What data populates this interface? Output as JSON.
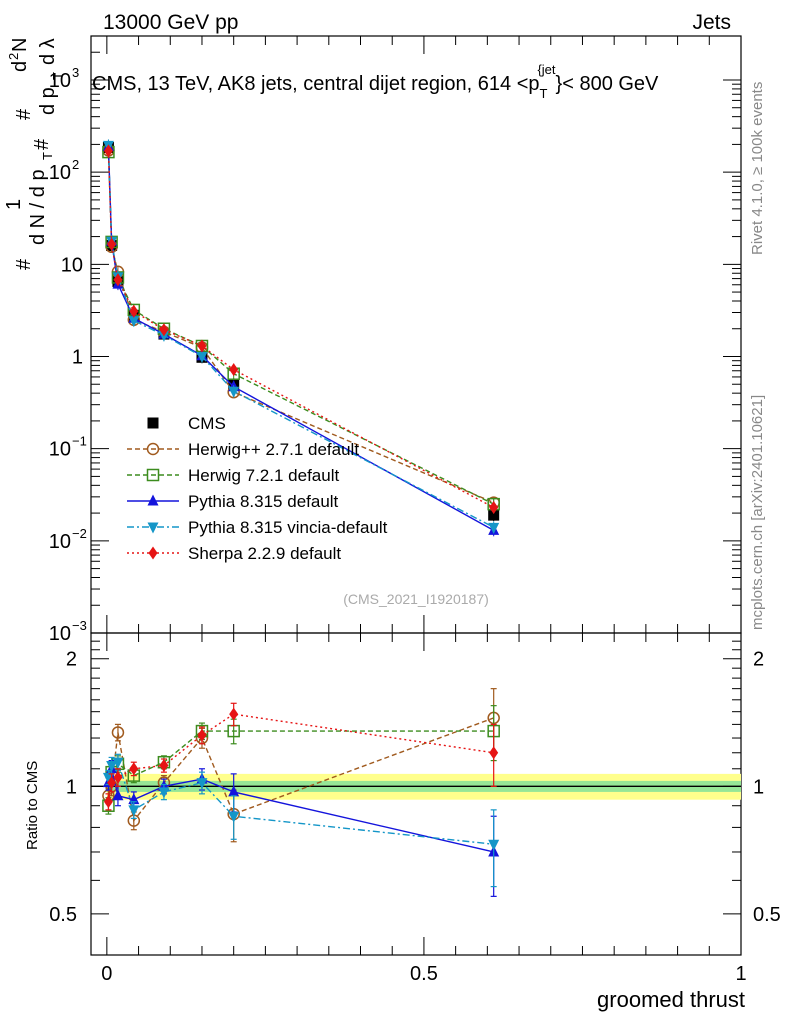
{
  "header": {
    "left": "13000 GeV pp",
    "right": "Jets",
    "title": "CMS, 13 TeV, AK8 jets, central dijet region, 614 <p",
    "title_sub": "T",
    "title_sup": "{jet",
    "title_end": "}< 800 GeV"
  },
  "side": {
    "rivet": "Rivet 4.1.0, ≥ 100k events",
    "mcplots": "mcplots.cern.ch [arXiv:2401.10621]"
  },
  "watermark": "(CMS_2021_I1920187)",
  "ylabel": {
    "hash": "#",
    "one": "1",
    "dN": "d N / d p",
    "T": "T",
    "d2N": "d",
    "sq": "2",
    "N": "N",
    "dpt": "d p",
    "dlam": "d λ"
  },
  "ratio_label": "Ratio to CMS",
  "xlabel": "groomed thrust",
  "chart_data": [
    {
      "type": "scatter",
      "panel": "main",
      "yscale": "log",
      "xlim": [
        -0.025,
        1.0
      ],
      "ylim": [
        0.001,
        3000
      ],
      "x": [
        0.0025,
        0.0075,
        0.0175,
        0.0425,
        0.09,
        0.15,
        0.2,
        0.61
      ],
      "yticks": [
        {
          "value": 0.001,
          "label": "10",
          "exp": "−3"
        },
        {
          "value": 0.01,
          "label": "10",
          "exp": "−2"
        },
        {
          "value": 0.1,
          "label": "10",
          "exp": "−1"
        },
        {
          "value": 1,
          "label": "1",
          "exp": ""
        },
        {
          "value": 10,
          "label": "10",
          "exp": ""
        },
        {
          "value": 100,
          "label": "10",
          "exp": "2"
        },
        {
          "value": 1000,
          "label": "10",
          "exp": "3"
        }
      ],
      "series": [
        {
          "name": "CMS",
          "color": "#000000",
          "marker": "square",
          "line": "none",
          "values": [
            185,
            16,
            6.5,
            2.8,
            1.75,
            0.98,
            0.5,
            0.019
          ]
        },
        {
          "name": "Herwig++ 2.7.1 default",
          "color": "#a05a1e",
          "marker": "circle-open",
          "line": "dashed",
          "values": [
            172,
            15.5,
            8.3,
            2.5,
            1.85,
            1.25,
            0.41,
            0.026
          ]
        },
        {
          "name": "Herwig 7.2.1 default",
          "color": "#3c8c1e",
          "marker": "square-open",
          "line": "dashed",
          "values": [
            165,
            17.5,
            7.2,
            3.2,
            2.0,
            1.3,
            0.65,
            0.025
          ]
        },
        {
          "name": "Pythia 8.315 default",
          "color": "#1414dc",
          "marker": "triangle-up",
          "line": "solid",
          "values": [
            190,
            17.8,
            6.1,
            2.6,
            1.75,
            1.02,
            0.47,
            0.013
          ]
        },
        {
          "name": "Pythia 8.315 vincia-default",
          "color": "#1496c8",
          "marker": "triangle-down",
          "line": "dashdot",
          "values": [
            195,
            17.8,
            7.3,
            2.45,
            1.7,
            1.0,
            0.42,
            0.014
          ]
        },
        {
          "name": "Sherpa 2.2.9 default",
          "color": "#e61414",
          "marker": "diamond",
          "line": "dotted",
          "values": [
            170,
            16.5,
            6.8,
            3.1,
            1.95,
            1.3,
            0.72,
            0.023
          ]
        }
      ]
    },
    {
      "type": "scatter",
      "panel": "ratio",
      "xlim": [
        -0.025,
        1.0
      ],
      "ylim": [
        0.4,
        2.3
      ],
      "xticks": [
        {
          "value": 0,
          "label": "0"
        },
        {
          "value": 0.5,
          "label": "0.5"
        },
        {
          "value": 1,
          "label": "1"
        }
      ],
      "yticks": [
        {
          "value": 0.5,
          "label": "0.5"
        },
        {
          "value": 1,
          "label": "1"
        },
        {
          "value": 2,
          "label": "2"
        }
      ],
      "band": {
        "inner": 0.03,
        "outer": 0.07
      },
      "x": [
        0.0025,
        0.0075,
        0.0175,
        0.0425,
        0.09,
        0.15,
        0.2,
        0.61
      ],
      "series": [
        {
          "name": "Herwig++ 2.7.1 default",
          "color": "#a05a1e",
          "marker": "circle-open",
          "line": "dashed",
          "values": [
            0.95,
            1.0,
            1.34,
            0.83,
            1.02,
            1.3,
            0.86,
            1.45
          ],
          "err": [
            0.04,
            0.05,
            0.06,
            0.04,
            0.04,
            0.07,
            0.12,
            0.25
          ]
        },
        {
          "name": "Herwig 7.2.1 default",
          "color": "#3c8c1e",
          "marker": "square-open",
          "line": "dashed",
          "values": [
            0.9,
            1.08,
            1.13,
            1.06,
            1.14,
            1.35,
            1.35,
            1.35
          ],
          "err": [
            0.04,
            0.05,
            0.05,
            0.04,
            0.04,
            0.06,
            0.09,
            0.2
          ]
        },
        {
          "name": "Pythia 8.315 default",
          "color": "#1414dc",
          "marker": "triangle-up",
          "line": "solid",
          "values": [
            1.02,
            1.1,
            0.95,
            0.93,
            1.0,
            1.04,
            0.97,
            0.7
          ],
          "err": [
            0.04,
            0.05,
            0.05,
            0.04,
            0.04,
            0.06,
            0.1,
            0.15
          ]
        },
        {
          "name": "Pythia 8.315 vincia-default",
          "color": "#1496c8",
          "marker": "triangle-down",
          "line": "dashdot",
          "values": [
            1.05,
            1.12,
            1.14,
            0.88,
            0.97,
            1.02,
            0.85,
            0.73
          ],
          "err": [
            0.04,
            0.05,
            0.05,
            0.04,
            0.04,
            0.06,
            0.1,
            0.15
          ]
        },
        {
          "name": "Sherpa 2.2.9 default",
          "color": "#e61414",
          "marker": "diamond",
          "line": "dotted",
          "values": [
            0.92,
            1.02,
            1.05,
            1.1,
            1.12,
            1.32,
            1.48,
            1.2
          ],
          "err": [
            0.04,
            0.05,
            0.05,
            0.04,
            0.04,
            0.06,
            0.09,
            0.2
          ]
        }
      ]
    }
  ]
}
